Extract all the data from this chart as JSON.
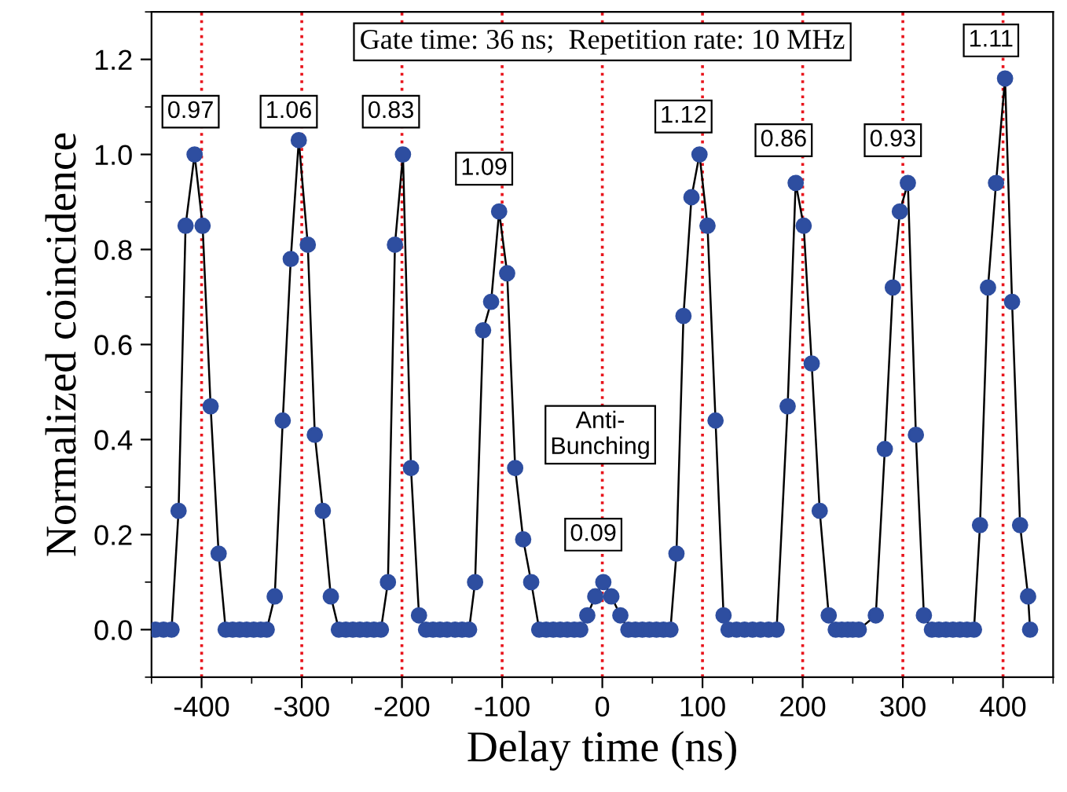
{
  "chart_data": {
    "type": "line",
    "xlabel": "Delay time (ns)",
    "ylabel": "Normalized coincidence",
    "xlim": [
      -450,
      450
    ],
    "xticks": [
      -400,
      -300,
      -200,
      -100,
      0,
      100,
      200,
      300,
      400
    ],
    "ylim": [
      -0.1,
      1.3
    ],
    "yticks": [
      {
        "value": 0.0,
        "label": "0.0"
      },
      {
        "value": 0.2,
        "label": "0.2"
      },
      {
        "value": 0.4,
        "label": "0.4"
      },
      {
        "value": 0.6,
        "label": "0.6"
      },
      {
        "value": 0.8,
        "label": "0.8"
      },
      {
        "value": 1.0,
        "label": "1.0"
      },
      {
        "value": 1.2,
        "label": "1.2"
      }
    ],
    "grid": false,
    "legend": false,
    "marker": "circle",
    "line_style": "solid",
    "series": [
      {
        "color": "#2e4ea0",
        "x": [
          -446,
          -438,
          -430,
          -423,
          -416,
          -407,
          -399,
          -391,
          -383,
          -376,
          -369,
          -362,
          -355,
          -348,
          -341,
          -335,
          -327,
          -319,
          -311,
          -303,
          -294,
          -287,
          -279,
          -271,
          -263,
          -256,
          -249,
          -242,
          -235,
          -228,
          -221,
          -214,
          -207,
          -199,
          -191,
          -183,
          -176,
          -169,
          -162,
          -155,
          -147,
          -140,
          -133,
          -127,
          -119,
          -111,
          -103,
          -95,
          -87,
          -79,
          -71,
          -63,
          -56,
          -49,
          -42,
          -35,
          -28,
          -22,
          -15,
          -7,
          1,
          9,
          18,
          26,
          33,
          40,
          47,
          54,
          61,
          68,
          74,
          81,
          89,
          97,
          105,
          113,
          121,
          126,
          134,
          142,
          150,
          158,
          166,
          174,
          185,
          193,
          201,
          209,
          217,
          226,
          233,
          239,
          245,
          250,
          256,
          273,
          282,
          290,
          297,
          305,
          313,
          321,
          329,
          336,
          343,
          350,
          357,
          364,
          371,
          377,
          385,
          393,
          402,
          409,
          417,
          425,
          427
        ],
        "values": [
          0,
          0,
          0,
          0.25,
          0.85,
          1.0,
          0.85,
          0.47,
          0.16,
          0,
          0,
          0,
          0,
          0,
          0,
          0,
          0.07,
          0.44,
          0.78,
          1.03,
          0.81,
          0.41,
          0.25,
          0.07,
          0,
          0,
          0,
          0,
          0,
          0,
          0,
          0.1,
          0.81,
          1.0,
          0.34,
          0.03,
          0,
          0,
          0,
          0,
          0,
          0,
          0,
          0.1,
          0.63,
          0.69,
          0.88,
          0.75,
          0.34,
          0.19,
          0.1,
          0,
          0,
          0,
          0,
          0,
          0,
          0,
          0.03,
          0.07,
          0.1,
          0.07,
          0.03,
          0,
          0,
          0,
          0,
          0,
          0,
          0,
          0.16,
          0.66,
          0.91,
          1.0,
          0.85,
          0.44,
          0.03,
          0,
          0,
          0,
          0,
          0,
          0,
          0,
          0.47,
          0.94,
          0.85,
          0.56,
          0.25,
          0.03,
          0,
          0,
          0,
          0,
          0,
          0.03,
          0.38,
          0.72,
          0.88,
          0.94,
          0.41,
          0.03,
          0,
          0,
          0,
          0,
          0,
          0,
          0,
          0.22,
          0.72,
          0.94,
          1.16,
          0.69,
          0.22,
          0.07,
          0
        ]
      }
    ],
    "ref_lines": [
      {
        "axis": "x",
        "value": -400,
        "color": "#e8141c",
        "line_style": "dotted"
      },
      {
        "axis": "x",
        "value": -300,
        "color": "#e8141c",
        "line_style": "dotted"
      },
      {
        "axis": "x",
        "value": -200,
        "color": "#e8141c",
        "line_style": "dotted"
      },
      {
        "axis": "x",
        "value": -100,
        "color": "#e8141c",
        "line_style": "dotted"
      },
      {
        "axis": "x",
        "value": 0,
        "color": "#e8141c",
        "line_style": "dotted"
      },
      {
        "axis": "x",
        "value": 100,
        "color": "#e8141c",
        "line_style": "dotted"
      },
      {
        "axis": "x",
        "value": 200,
        "color": "#e8141c",
        "line_style": "dotted"
      },
      {
        "axis": "x",
        "value": 300,
        "color": "#e8141c",
        "line_style": "dotted"
      },
      {
        "axis": "x",
        "value": 400,
        "color": "#e8141c",
        "line_style": "dotted"
      }
    ],
    "annotations": [
      "Gate time: 36 ns;  Repetition rate: 10 MHz",
      {
        "text": "0.97",
        "x": -411,
        "y": 1.09
      },
      {
        "text": "1.06",
        "x": -313,
        "y": 1.09
      },
      {
        "text": "0.83",
        "x": -211,
        "y": 1.09
      },
      {
        "text": "1.09",
        "x": -118,
        "y": 0.97
      },
      {
        "text": "Anti-\nBunching",
        "x": -2,
        "y": 0.41
      },
      {
        "text": "0.09",
        "x": -9,
        "y": 0.2
      },
      {
        "text": "1.12",
        "x": 81,
        "y": 1.08
      },
      {
        "text": "0.86",
        "x": 181,
        "y": 1.03
      },
      {
        "text": "0.93",
        "x": 290,
        "y": 1.03
      },
      {
        "text": "1.11",
        "x": 388,
        "y": 1.24
      }
    ]
  }
}
